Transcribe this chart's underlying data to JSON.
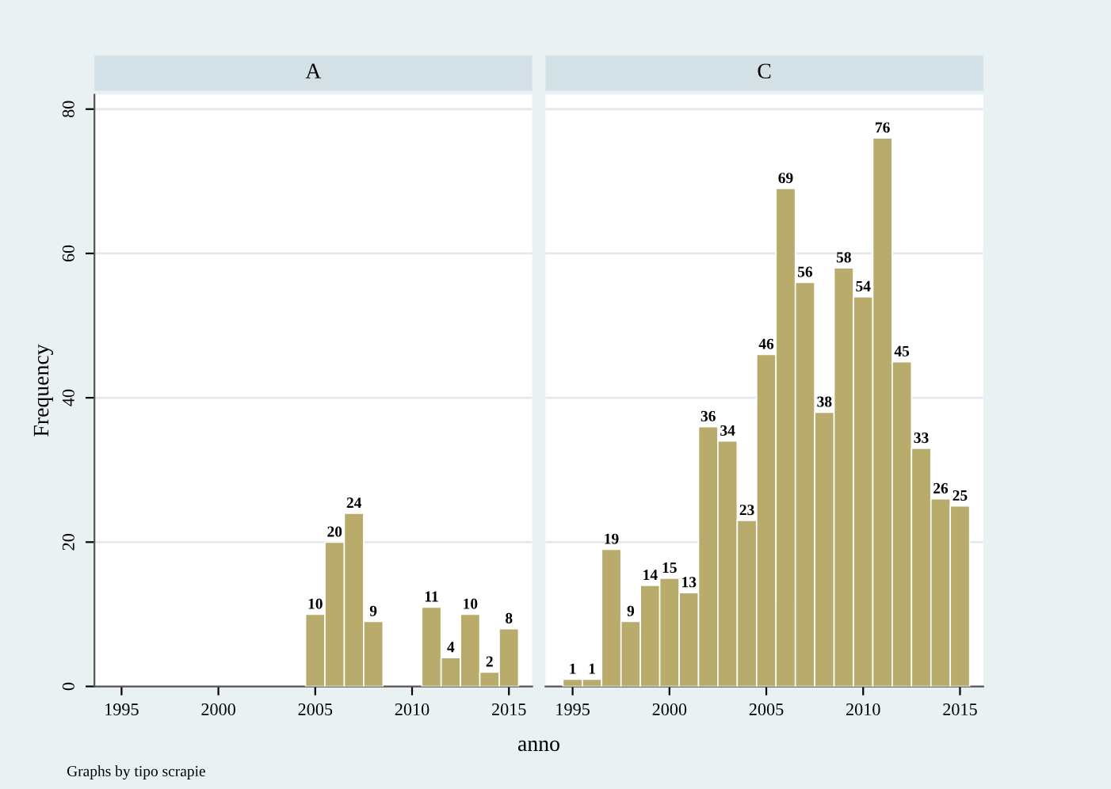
{
  "chart_data": [
    {
      "type": "histogram",
      "title": "A",
      "xlabel": "anno",
      "ylabel": "Frequency",
      "bins": [
        1994.5,
        1995.5,
        1996.5,
        1997.5,
        1998.5,
        1999.5,
        2000.5,
        2001.5,
        2002.5,
        2003.5,
        2004.5,
        2005.5,
        2006.5,
        2007.5,
        2008.5,
        2009.5,
        2010.5,
        2011.5,
        2012.5,
        2013.5,
        2014.5,
        2015.5
      ],
      "values": [
        0,
        0,
        0,
        0,
        0,
        0,
        0,
        0,
        0,
        0,
        10,
        20,
        24,
        9,
        0,
        0,
        11,
        4,
        10,
        2,
        8
      ],
      "value_labels": [
        null,
        null,
        null,
        null,
        null,
        null,
        null,
        null,
        null,
        null,
        "10",
        "20",
        "24",
        "9",
        null,
        null,
        "11",
        "4",
        "10",
        "2",
        "8"
      ],
      "color": "#b8ab6c",
      "xlim": [
        1993.6,
        2016.2
      ],
      "xticks": [
        1995,
        2000,
        2005,
        2010,
        2015
      ],
      "ylim": [
        0,
        82
      ],
      "yticks": [
        0,
        20,
        40,
        60,
        80
      ],
      "grid": "y"
    },
    {
      "type": "histogram",
      "title": "C",
      "bins": [
        1994.5,
        1995.5,
        1996.5,
        1997.5,
        1998.5,
        1999.5,
        2000.5,
        2001.5,
        2002.5,
        2003.5,
        2004.5,
        2005.5,
        2006.5,
        2007.5,
        2008.5,
        2009.5,
        2010.5,
        2011.5,
        2012.5,
        2013.5,
        2014.5,
        2015.5
      ],
      "values": [
        1,
        1,
        19,
        9,
        14,
        15,
        13,
        36,
        34,
        23,
        46,
        69,
        56,
        38,
        58,
        54,
        76,
        45,
        33,
        26,
        25
      ],
      "data_labels": true,
      "color": "#b8ab6c",
      "xlim": [
        1993.6,
        2016.2
      ],
      "xticks": [
        1995,
        2000,
        2005,
        2010,
        2015
      ],
      "ylim": [
        0,
        82
      ],
      "yticks": [
        0,
        20,
        40,
        60,
        80
      ],
      "grid": "y",
      "tick_labels": "x",
      "annotations": [
        "Graphs by tipo scrapie"
      ]
    }
  ]
}
